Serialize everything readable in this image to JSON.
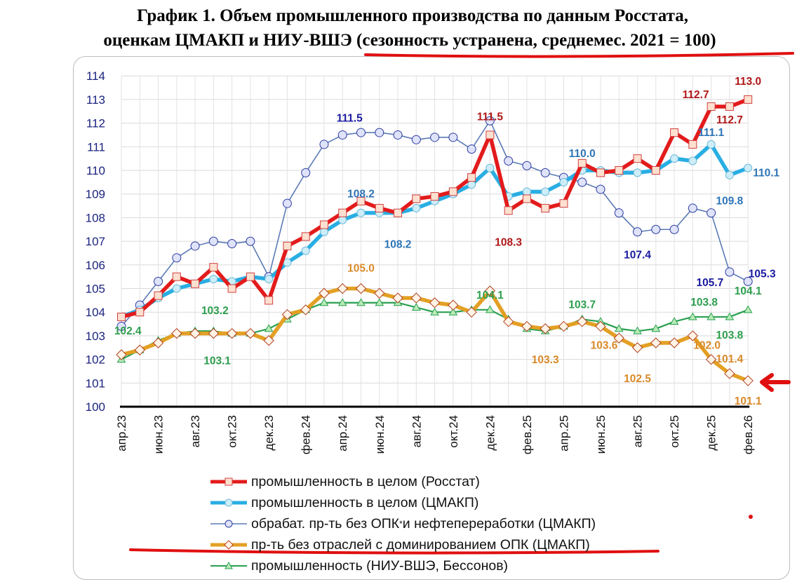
{
  "title": {
    "line1": "График 1. Объем промышленного производства по данным Росстата,",
    "line2": "оценкам ЦМАКП и НИУ-ВШЭ (сезонность устранена, среднемес. 2021 = 100)"
  },
  "chart_data": {
    "type": "line",
    "title": "График 1. Объем промышленного производства по данным Росстата, оценкам ЦМАКП и НИУ-ВШЭ (сезонность устранена, среднемес. 2021 = 100)",
    "xlabel": "",
    "ylabel": "",
    "ylim": [
      100,
      114
    ],
    "yticks": [
      "100",
      "101",
      "102",
      "103",
      "104",
      "105",
      "106",
      "107",
      "108",
      "109",
      "110",
      "111",
      "112",
      "113",
      "114"
    ],
    "grid": true,
    "legend_position": "bottom",
    "x": [
      "апр.23",
      "май.23",
      "июн.23",
      "июл.23",
      "авг.23",
      "сен.23",
      "окт.23",
      "ноя.23",
      "дек.23",
      "янв.24",
      "фев.24",
      "мар.24",
      "апр.24",
      "май.24",
      "июн.24",
      "июл.24",
      "авг.24",
      "сен.24",
      "окт.24",
      "ноя.24",
      "дек.24",
      "янв.25",
      "фев.25",
      "мар.25",
      "апр.25",
      "май.25",
      "июн.25",
      "июл.25",
      "авг.25",
      "сен.25",
      "окт.25",
      "ноя.25",
      "дек.25",
      "янв.26",
      "фев.26"
    ],
    "xticks": [
      "апр.23",
      "июн.23",
      "авг.23",
      "окт.23",
      "дек.23",
      "фев.24",
      "апр.24",
      "июн.24",
      "авг.24",
      "окт.24",
      "дек.24",
      "фев.25",
      "апр.25",
      "июн.25",
      "авг.25",
      "окт.25",
      "дек.25",
      "фев.26"
    ],
    "series": [
      {
        "name": "промышленность в целом (Росстат)",
        "color": "#e31b1b",
        "marker": "square",
        "values": [
          103.8,
          104.0,
          104.7,
          105.5,
          105.2,
          105.9,
          105.0,
          105.5,
          104.5,
          106.8,
          107.2,
          107.7,
          108.2,
          108.7,
          108.4,
          108.2,
          108.8,
          108.9,
          109.1,
          109.7,
          111.5,
          108.3,
          108.8,
          108.4,
          108.6,
          110.3,
          109.9,
          110.0,
          110.5,
          110.0,
          111.6,
          111.1,
          112.7,
          112.7,
          113.0
        ]
      },
      {
        "name": "промышленность в целом (ЦМАКП)",
        "color": "#29aee3",
        "marker": "circle",
        "values": [
          103.8,
          104.1,
          104.6,
          105.0,
          105.2,
          105.4,
          105.3,
          105.5,
          105.4,
          106.1,
          106.6,
          107.4,
          107.9,
          108.2,
          108.2,
          108.2,
          108.4,
          108.7,
          109.0,
          109.4,
          110.1,
          108.9,
          109.1,
          109.1,
          109.5,
          110.0,
          110.0,
          109.9,
          109.9,
          110.0,
          110.5,
          110.4,
          111.1,
          109.8,
          110.1
        ]
      },
      {
        "name": "обрабат. пр-ть без ОПК",
        "name_sup": "*",
        "name_tail": " и нефтепереработки (ЦМАКП)",
        "color": "#5b7bb5",
        "marker": "circle-small",
        "values": [
          103.4,
          104.3,
          105.3,
          106.3,
          106.8,
          107.0,
          106.9,
          107.0,
          105.5,
          108.6,
          109.9,
          111.1,
          111.5,
          111.6,
          111.6,
          111.5,
          111.3,
          111.4,
          111.4,
          110.9,
          112.1,
          110.4,
          110.2,
          109.9,
          109.7,
          109.5,
          109.2,
          108.2,
          107.4,
          107.5,
          107.5,
          108.4,
          108.2,
          105.7,
          105.3
        ]
      },
      {
        "name": "пр-ть без отраслей с доминированием ОПК (ЦМАКП)",
        "color": "#e3a024",
        "marker": "diamond",
        "values": [
          102.2,
          102.4,
          102.7,
          103.1,
          103.1,
          103.1,
          103.1,
          103.1,
          102.8,
          103.9,
          104.1,
          104.8,
          105.0,
          105.0,
          104.8,
          104.6,
          104.6,
          104.4,
          104.3,
          104.0,
          104.9,
          103.6,
          103.4,
          103.3,
          103.4,
          103.6,
          103.4,
          102.9,
          102.5,
          102.7,
          102.7,
          103.0,
          102.0,
          101.4,
          101.1
        ]
      },
      {
        "name": "промышленность (НИУ-ВШЭ, Бессонов)",
        "color": "#2aa050",
        "marker": "triangle",
        "values": [
          102.0,
          102.4,
          102.8,
          103.1,
          103.2,
          103.2,
          103.1,
          103.1,
          103.3,
          103.7,
          104.1,
          104.4,
          104.4,
          104.4,
          104.4,
          104.4,
          104.2,
          104.0,
          104.0,
          104.1,
          104.1,
          103.7,
          103.3,
          103.2,
          103.4,
          103.7,
          103.6,
          103.3,
          103.2,
          103.3,
          103.6,
          103.8,
          103.8,
          103.8,
          104.1
        ]
      }
    ],
    "annotations": [
      {
        "text": "111.5",
        "series": 2,
        "point": 12,
        "color": "#1a1aa0"
      },
      {
        "text": "108.2",
        "series": 1,
        "point": 13,
        "color": "#2e75b6"
      },
      {
        "text": "108.2",
        "series": 1,
        "point": 15,
        "color": "#2e75b6"
      },
      {
        "text": "105.0",
        "series": 3,
        "point": 13,
        "color": "#d98a2a"
      },
      {
        "text": "111.5",
        "series": 0,
        "point": 20,
        "color": "#b01818"
      },
      {
        "text": "108.3",
        "series": 0,
        "point": 21,
        "color": "#b01818"
      },
      {
        "text": "104.1",
        "series": 4,
        "point": 20,
        "color": "#2e9e4e"
      },
      {
        "text": "103.3",
        "series": 3,
        "point": 23,
        "color": "#d98a2a"
      },
      {
        "text": "110.0",
        "series": 1,
        "point": 25,
        "color": "#2e75b6"
      },
      {
        "text": "103.7",
        "series": 4,
        "point": 25,
        "color": "#2e9e4e"
      },
      {
        "text": "103.6",
        "series": 3,
        "point": 26,
        "color": "#d98a2a"
      },
      {
        "text": "107.4",
        "series": 2,
        "point": 28,
        "color": "#1a1aa0"
      },
      {
        "text": "102.5",
        "series": 3,
        "point": 28,
        "color": "#d98a2a"
      },
      {
        "text": "112.7",
        "series": 0,
        "point": 32,
        "color": "#b01818"
      },
      {
        "text": "112.7",
        "series": 0,
        "point": 33,
        "color": "#b01818"
      },
      {
        "text": "113.0",
        "series": 0,
        "point": 34,
        "color": "#b01818"
      },
      {
        "text": "111.1",
        "series": 1,
        "point": 32,
        "color": "#2e75b6"
      },
      {
        "text": "110.1",
        "series": 1,
        "point": 34,
        "color": "#2e75b6"
      },
      {
        "text": "109.8",
        "series": 1,
        "point": 33,
        "color": "#2e75b6"
      },
      {
        "text": "105.3",
        "series": 2,
        "point": 34,
        "color": "#1a1aa0"
      },
      {
        "text": "105.7",
        "series": 2,
        "point": 33,
        "color": "#1a1aa0"
      },
      {
        "text": "104.1",
        "series": 4,
        "point": 34,
        "color": "#2e9e4e"
      },
      {
        "text": "103.8",
        "series": 4,
        "point": 32,
        "color": "#2e9e4e"
      },
      {
        "text": "103.8",
        "series": 4,
        "point": 33,
        "color": "#2e9e4e"
      },
      {
        "text": "101.4",
        "series": 3,
        "point": 33,
        "color": "#d98a2a"
      },
      {
        "text": "102.0",
        "series": 3,
        "point": 32,
        "color": "#d98a2a"
      },
      {
        "text": "101.1",
        "series": 3,
        "point": 34,
        "color": "#d98a2a"
      },
      {
        "text": "103.2",
        "series": 4,
        "point": 5,
        "color": "#2e9e4e"
      },
      {
        "text": "103.1",
        "series": 4,
        "point": 6,
        "color": "#2e9e4e"
      },
      {
        "text": "102.4",
        "series": 4,
        "point": 1,
        "color": "#2e9e4e"
      }
    ]
  },
  "markup_color": "#e01010"
}
